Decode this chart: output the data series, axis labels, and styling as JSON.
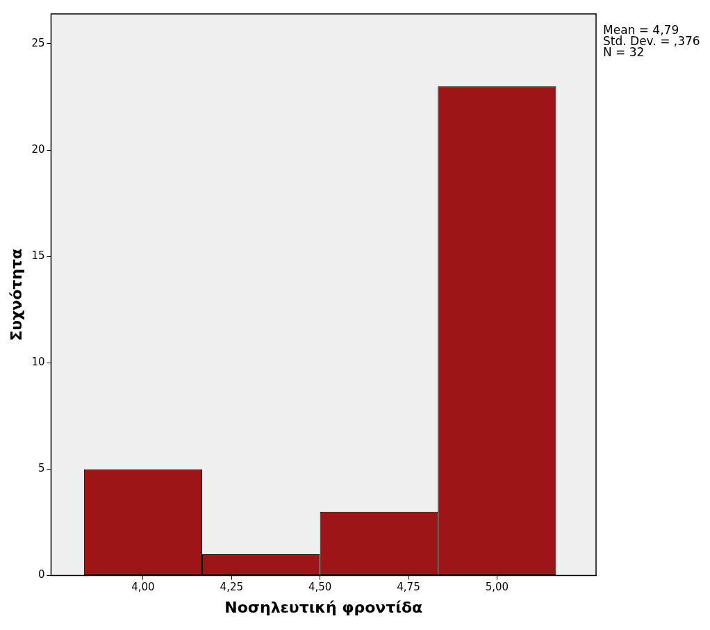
{
  "chart_data": {
    "type": "histogram",
    "xlabel": "Νοσηλευτική φροντίδα",
    "ylabel": "Συχνότητα",
    "bins": [
      3.833,
      4.167,
      4.5,
      4.833,
      5.167
    ],
    "values": [
      5,
      1,
      3,
      23
    ],
    "color": "#9e1518",
    "xlim": [
      3.74,
      5.28
    ],
    "xticks": [
      {
        "value": 4,
        "label": "4,00"
      },
      {
        "value": 4.25,
        "label": "4,25"
      },
      {
        "value": 4.5,
        "label": "4,50"
      },
      {
        "value": 4.75,
        "label": "4,75"
      },
      {
        "value": 5,
        "label": "5,00"
      }
    ],
    "ylim": [
      0,
      26.4
    ],
    "yticks": [
      0,
      5,
      10,
      15,
      20,
      25
    ],
    "grid": false,
    "legend": false,
    "annotations": [
      "Mean = 4,79",
      "Std. Dev. = ,376",
      "N = 32"
    ]
  }
}
